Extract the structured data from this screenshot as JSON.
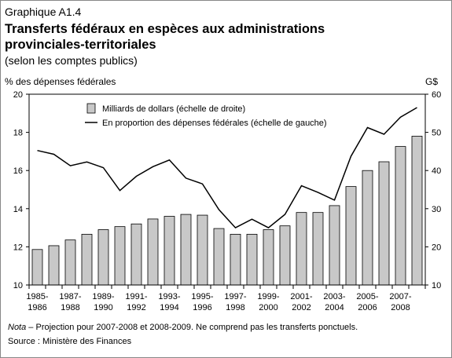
{
  "header": "Graphique A1.4",
  "chart_data": {
    "type": "bar-line",
    "title": [
      "Transferts fédéraux en espèces aux administrations",
      "provinciales-territoriales"
    ],
    "subtitle": "(selon les comptes publics)",
    "ylabel": "% des dépenses fédérales",
    "y2label": "G$",
    "categories": [
      "1985-1986",
      null,
      "1987-1988",
      null,
      "1989-1990",
      null,
      "1991-1992",
      null,
      "1993-1994",
      null,
      "1995-1996",
      null,
      "1997-1998",
      null,
      "1999-2000",
      null,
      "2001-2002",
      null,
      "2003-2004",
      null,
      "2005-2006",
      null,
      "2007-2008",
      null
    ],
    "ylim": [
      10,
      20
    ],
    "yticks": [
      10,
      12,
      14,
      16,
      18,
      20
    ],
    "y2lim": [
      10,
      60
    ],
    "y2ticks": [
      10,
      20,
      30,
      40,
      50,
      60
    ],
    "series": [
      {
        "name": "Milliards de dollars (échelle de droite)",
        "type": "bar",
        "axis": "y2",
        "color": "#c8c8c8",
        "values": [
          19.3,
          20.3,
          21.8,
          23.3,
          24.5,
          25.3,
          26,
          27.3,
          28,
          28.5,
          28.3,
          24.8,
          23.3,
          23.3,
          24.5,
          25.5,
          29,
          29,
          30.8,
          35.8,
          40,
          42.3,
          46.3,
          49
        ]
      },
      {
        "name": "En proportion des dépenses fédérales (échelle de gauche)",
        "type": "line",
        "color": "#000000",
        "values": [
          17.05,
          16.85,
          16.25,
          16.45,
          16.15,
          14.95,
          15.7,
          16.2,
          16.55,
          15.6,
          15.3,
          13.95,
          13.0,
          13.45,
          13.0,
          13.7,
          15.2,
          14.85,
          14.45,
          16.75,
          18.25,
          17.9,
          18.8,
          19.3
        ]
      }
    ]
  },
  "notes": {
    "nota_label": "Nota",
    "nota_text": " – Projection pour 2007-2008 et 2008-2009. Ne comprend pas les transferts ponctuels.",
    "source": "Source : Ministère des Finances"
  }
}
